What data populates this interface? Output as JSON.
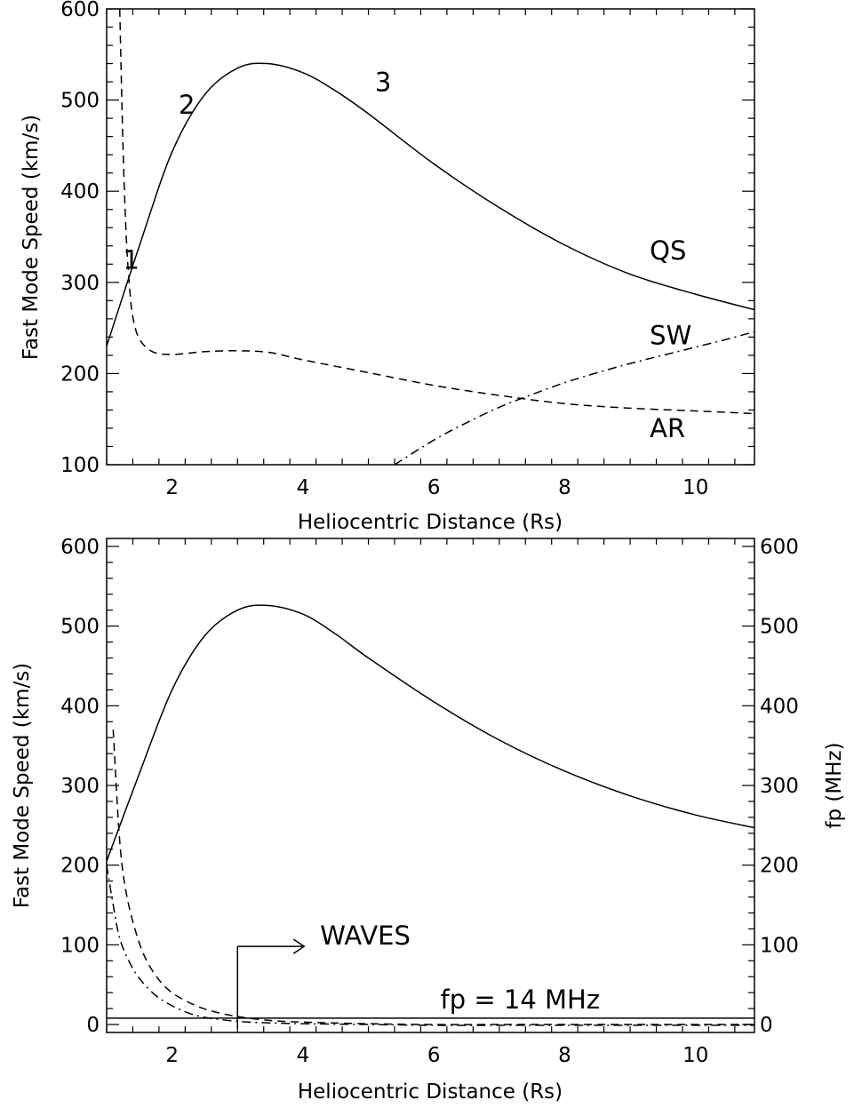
{
  "chart_data": [
    {
      "type": "line",
      "xlabel": "Heliocentric Distance (Rs)",
      "ylabel": "Fast Mode Speed (km/s)",
      "xlim": [
        1,
        10.9
      ],
      "ylim": [
        100,
        600
      ],
      "x_ticks": [
        2,
        4,
        6,
        8,
        10
      ],
      "y_ticks": [
        100,
        200,
        300,
        400,
        500,
        600
      ],
      "series": [
        {
          "name": "QS",
          "style": "solid",
          "x": [
            1.0,
            1.5,
            2.0,
            2.5,
            3.0,
            3.45,
            4.0,
            4.5,
            5.0,
            6.0,
            7.0,
            8.0,
            9.0,
            10.0,
            10.9
          ],
          "y": [
            230,
            340,
            443,
            506,
            535,
            540,
            530,
            510,
            485,
            430,
            382,
            341,
            309,
            287,
            270
          ]
        },
        {
          "name": "AR",
          "style": "dashed",
          "x": [
            1.2,
            1.25,
            1.3,
            1.35,
            1.4,
            1.5,
            1.7,
            2.0,
            2.5,
            3.0,
            3.5,
            4.0,
            5.0,
            6.0,
            7.0,
            8.0,
            9.0,
            10.0,
            10.9
          ],
          "y": [
            600,
            450,
            350,
            295,
            262,
            238,
            224,
            221,
            224,
            225,
            223,
            215,
            201,
            187,
            176,
            167,
            162,
            159,
            156
          ]
        },
        {
          "name": "SW",
          "style": "dash-dot",
          "x": [
            5.4,
            6.0,
            6.5,
            7.0,
            7.5,
            8.0,
            8.5,
            9.0,
            9.5,
            10.0,
            10.5,
            10.9
          ],
          "y": [
            100,
            127,
            146,
            163,
            177,
            190,
            201,
            211,
            220,
            229,
            238,
            246
          ]
        }
      ],
      "annotations": [
        {
          "text": "1",
          "x": 1.25,
          "y": 315
        },
        {
          "text": "2",
          "x": 2.1,
          "y": 485
        },
        {
          "text": "3",
          "x": 5.1,
          "y": 510
        },
        {
          "text": "QS",
          "x": 9.3,
          "y": 325
        },
        {
          "text": "SW",
          "x": 9.3,
          "y": 232
        },
        {
          "text": "AR",
          "x": 9.3,
          "y": 130
        }
      ]
    },
    {
      "type": "line",
      "xlabel": "Heliocentric Distance (Rs)",
      "ylabel": "Fast Mode Speed (km/s)",
      "y2label": "fp (MHz)",
      "xlim": [
        1,
        10.9
      ],
      "ylim": [
        -10,
        610
      ],
      "x_ticks": [
        2,
        4,
        6,
        8,
        10
      ],
      "y_ticks": [
        0,
        100,
        200,
        300,
        400,
        500,
        600
      ],
      "y2_ticks": [
        0,
        100,
        200,
        300,
        400,
        500,
        600
      ],
      "series": [
        {
          "name": "",
          "style": "solid",
          "x": [
            1.0,
            1.5,
            2.0,
            2.5,
            3.0,
            3.45,
            4.0,
            4.5,
            5.0,
            6.0,
            7.0,
            8.0,
            9.0,
            10.0,
            10.9
          ],
          "y": [
            205,
            315,
            420,
            488,
            520,
            526,
            515,
            490,
            460,
            405,
            357,
            318,
            287,
            263,
            247
          ]
        },
        {
          "name": "",
          "style": "dashed",
          "x": [
            1.1,
            1.2,
            1.3,
            1.45,
            1.6,
            1.8,
            2.0,
            2.3,
            2.6,
            3.0,
            3.5,
            4.0,
            5.0,
            6.0,
            7.0,
            8.0,
            9.0,
            10.0,
            10.9
          ],
          "y": [
            370,
            230,
            165,
            115,
            82,
            56,
            40,
            26,
            17,
            10,
            5,
            3,
            1,
            0,
            0,
            0,
            0,
            0,
            0
          ]
        },
        {
          "name": "",
          "style": "dash-dot",
          "x": [
            1.0,
            1.1,
            1.2,
            1.35,
            1.5,
            1.7,
            1.9,
            2.2,
            2.5,
            3.0,
            3.5,
            4.0,
            5.0,
            6.0,
            7.0,
            8.0,
            9.0,
            10.0,
            10.9
          ],
          "y": [
            200,
            150,
            108,
            78,
            58,
            40,
            28,
            16,
            9,
            4,
            2,
            1,
            0,
            -1,
            -1,
            -1,
            -1,
            -1,
            -1
          ]
        },
        {
          "name": "fp = 14 MHz",
          "style": "solid",
          "x": [
            1.0,
            10.9
          ],
          "y": [
            8,
            8
          ]
        }
      ],
      "marker": {
        "label": "WAVES",
        "x": 3.0,
        "y_bottom": -5,
        "y_top": 98
      },
      "annotations": [
        {
          "text": "fp  =  14  MHz",
          "x": 6.1,
          "y": 20
        }
      ]
    }
  ]
}
